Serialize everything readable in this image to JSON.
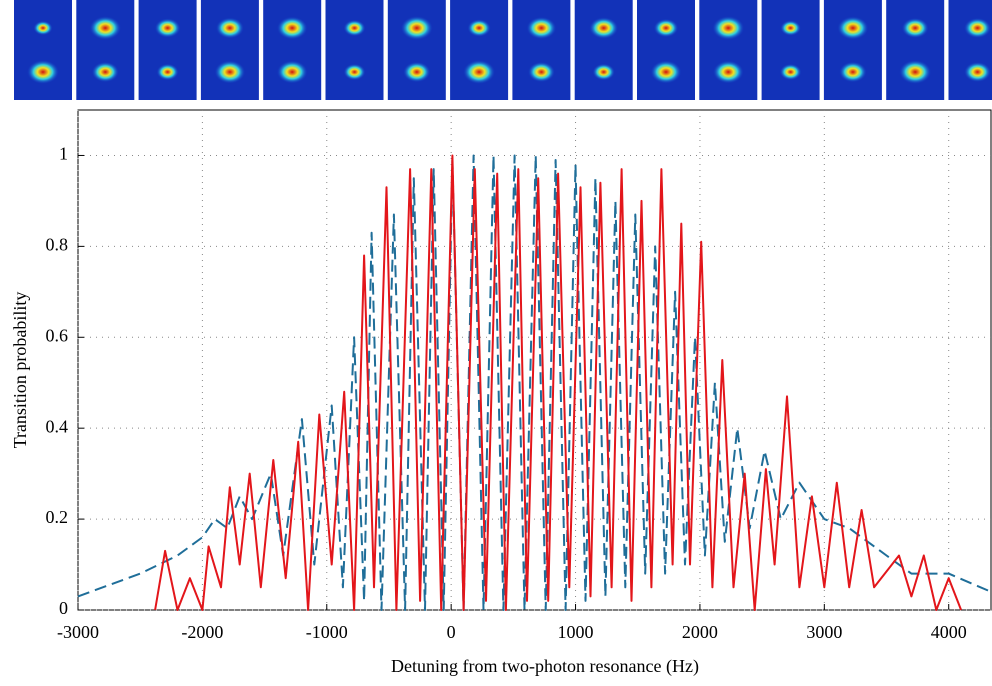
{
  "chart_data": {
    "type": "line",
    "xlabel": "Detuning from two-photon resonance (Hz)",
    "ylabel": "Transition probability",
    "xlim": [
      -3000,
      4340
    ],
    "ylim": [
      0,
      1.1
    ],
    "xticks": [
      -3000,
      -2000,
      -1000,
      0,
      1000,
      2000,
      3000,
      4000
    ],
    "yticks": [
      0,
      0.2,
      0.4,
      0.6,
      0.8,
      1
    ],
    "grid": true,
    "series": [
      {
        "color": "#1f6e99",
        "dash": true,
        "x": [
          -3000,
          -2500,
          -2200,
          -2000,
          -1900,
          -1800,
          -1700,
          -1600,
          -1450,
          -1350,
          -1200,
          -1100,
          -960,
          -870,
          -780,
          -700,
          -640,
          -560,
          -460,
          -370,
          -300,
          -210,
          -140,
          -60,
          10,
          100,
          180,
          260,
          340,
          420,
          510,
          590,
          680,
          760,
          840,
          920,
          1000,
          1080,
          1160,
          1240,
          1320,
          1400,
          1480,
          1560,
          1640,
          1720,
          1800,
          1880,
          1960,
          2040,
          2120,
          2200,
          2300,
          2400,
          2520,
          2650,
          2800,
          3000,
          3200,
          3500,
          3700,
          4000,
          4340
        ],
        "values": [
          0.03,
          0.08,
          0.12,
          0.16,
          0.2,
          0.18,
          0.25,
          0.2,
          0.3,
          0.12,
          0.42,
          0.1,
          0.45,
          0.05,
          0.6,
          0.02,
          0.83,
          0,
          0.87,
          0,
          0.95,
          0,
          0.97,
          0,
          0.99,
          0,
          1,
          0,
          1,
          0,
          1,
          0,
          1,
          0,
          0.99,
          0,
          0.98,
          0.02,
          0.95,
          0.03,
          0.9,
          0.05,
          0.87,
          0.08,
          0.8,
          0.08,
          0.7,
          0.1,
          0.6,
          0.12,
          0.5,
          0.15,
          0.4,
          0.18,
          0.35,
          0.2,
          0.28,
          0.2,
          0.18,
          0.12,
          0.08,
          0.08,
          0.04
        ]
      },
      {
        "color": "#e3161b",
        "dash": false,
        "x": [
          -2380,
          -2300,
          -2200,
          -2100,
          -2000,
          -1950,
          -1850,
          -1780,
          -1700,
          -1620,
          -1530,
          -1430,
          -1330,
          -1230,
          -1150,
          -1060,
          -960,
          -860,
          -780,
          -700,
          -620,
          -520,
          -440,
          -330,
          -250,
          -160,
          -80,
          10,
          100,
          190,
          280,
          370,
          440,
          540,
          610,
          700,
          780,
          860,
          950,
          1040,
          1120,
          1200,
          1290,
          1370,
          1450,
          1530,
          1610,
          1690,
          1780,
          1850,
          1920,
          2010,
          2100,
          2180,
          2270,
          2360,
          2440,
          2530,
          2600,
          2700,
          2800,
          2900,
          3000,
          3100,
          3200,
          3300,
          3400,
          3600,
          3700,
          3800,
          3900,
          4000,
          4100
        ],
        "values": [
          0,
          0.13,
          0,
          0.07,
          0,
          0.14,
          0.05,
          0.27,
          0.1,
          0.3,
          0.05,
          0.33,
          0.07,
          0.37,
          0,
          0.43,
          0.1,
          0.48,
          0,
          0.78,
          0.05,
          0.93,
          0,
          0.97,
          0.02,
          0.97,
          0,
          1,
          0,
          0.97,
          0.02,
          0.96,
          0,
          0.97,
          0.02,
          0.95,
          0.02,
          0.96,
          0.05,
          0.93,
          0.03,
          0.94,
          0.05,
          0.97,
          0.02,
          0.9,
          0.05,
          0.97,
          0.1,
          0.85,
          0.1,
          0.81,
          0.05,
          0.55,
          0.05,
          0.3,
          0,
          0.31,
          0.1,
          0.47,
          0.05,
          0.25,
          0.05,
          0.28,
          0.05,
          0.22,
          0.05,
          0.12,
          0.03,
          0.12,
          0,
          0.07,
          0
        ]
      }
    ]
  }
}
